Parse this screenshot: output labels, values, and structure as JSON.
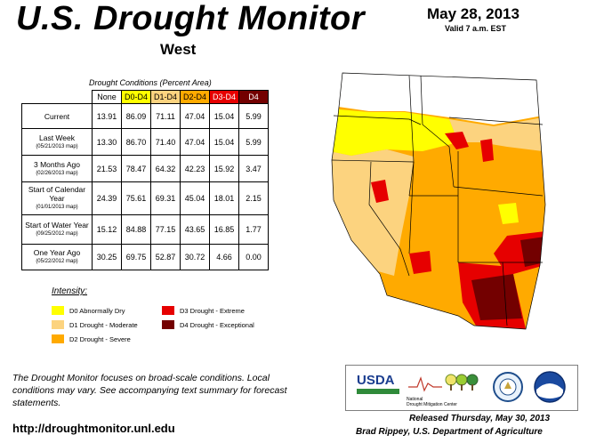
{
  "header": {
    "title": "U.S. Drought Monitor",
    "region": "West",
    "date": "May 28, 2013",
    "valid": "Valid 7 a.m. EST"
  },
  "table": {
    "caption": "Drought Conditions (Percent Area)",
    "columns": [
      "None",
      "D0-D4",
      "D1-D4",
      "D2-D4",
      "D3-D4",
      "D4"
    ],
    "column_colors": [
      "#ffffff",
      "#ffff00",
      "#fcd37f",
      "#ffaa00",
      "#e60000",
      "#730000"
    ],
    "rows": [
      {
        "label": "Current",
        "sub": "",
        "values": [
          "13.91",
          "86.09",
          "71.11",
          "47.04",
          "15.04",
          "5.99"
        ]
      },
      {
        "label": "Last Week",
        "sub": "(05/21/2013 map)",
        "values": [
          "13.30",
          "86.70",
          "71.40",
          "47.04",
          "15.04",
          "5.99"
        ]
      },
      {
        "label": "3 Months Ago",
        "sub": "(02/26/2013 map)",
        "values": [
          "21.53",
          "78.47",
          "64.32",
          "42.23",
          "15.92",
          "3.47"
        ]
      },
      {
        "label": "Start of Calendar Year",
        "sub": "(01/01/2013 map)",
        "values": [
          "24.39",
          "75.61",
          "69.31",
          "45.04",
          "18.01",
          "2.15"
        ]
      },
      {
        "label": "Start of Water Year",
        "sub": "(09/25/2012 map)",
        "values": [
          "15.12",
          "84.88",
          "77.15",
          "43.65",
          "16.85",
          "1.77"
        ]
      },
      {
        "label": "One Year Ago",
        "sub": "(05/22/2012 map)",
        "values": [
          "30.25",
          "69.75",
          "52.87",
          "30.72",
          "4.66",
          "0.00"
        ]
      }
    ]
  },
  "legend": {
    "heading": "Intensity:",
    "items": [
      {
        "label": "D0 Abnormally Dry",
        "color": "#ffff00"
      },
      {
        "label": "D1 Drought - Moderate",
        "color": "#fcd37f"
      },
      {
        "label": "D2 Drought - Severe",
        "color": "#ffaa00"
      },
      {
        "label": "D3 Drought - Extreme",
        "color": "#e60000"
      },
      {
        "label": "D4 Drought - Exceptional",
        "color": "#730000"
      }
    ]
  },
  "footer": {
    "note": "The Drought Monitor focuses on broad-scale conditions. Local conditions may vary. See accompanying text summary for forecast statements.",
    "url": "http://droughtmonitor.unl.edu",
    "released": "Released Thursday, May 30, 2013",
    "author": "Brad Rippey, U.S. Department of Agriculture"
  },
  "logos": {
    "usda": "USDA",
    "ndmc_line1": "National",
    "ndmc_line2": "Drought Mitigation Center"
  }
}
